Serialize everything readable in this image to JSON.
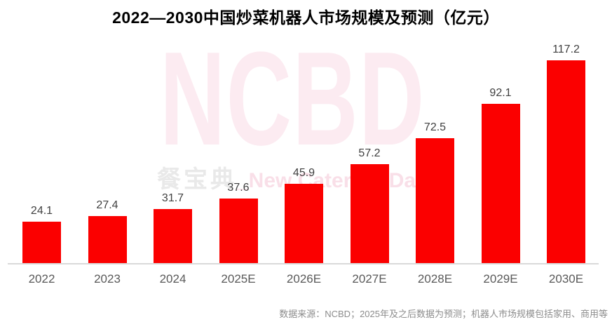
{
  "title": "2022—2030中国炒菜机器人市场规模及预测（亿元）",
  "watermark": {
    "logo": "NCBD",
    "subtext_cn": "餐宝典",
    "subtext_en": "_New Catering Data"
  },
  "source_note": "数据来源：NCBD；2025年及之后数据为预测；机器人市场规模包括家用、商用等",
  "colors": {
    "bar": "#fb0000",
    "title_text": "#000000",
    "value_label": "#3f3f3f",
    "axis_label": "#595959",
    "axis_line": "#d9d9d9",
    "source_text": "#8c8c8c",
    "watermark_pink": "#fcebf1",
    "watermark_cn_gray": "#e9e9e9",
    "watermark_en_pink": "#f9dfe8"
  },
  "chart_data": {
    "type": "bar",
    "title": "2022—2030中国炒菜机器人市场规模及预测（亿元）",
    "categories": [
      "2022",
      "2023",
      "2024",
      "2025E",
      "2026E",
      "2027E",
      "2028E",
      "2029E",
      "2030E"
    ],
    "values": [
      24.1,
      27.4,
      31.7,
      37.6,
      45.9,
      57.2,
      72.5,
      92.1,
      117.2
    ],
    "unit": "亿元",
    "xlabel": "",
    "ylabel": "",
    "ylim": [
      0,
      125
    ],
    "grid": false,
    "legend": "none",
    "data_labels": "one decimal, above each bar",
    "bar_color": "#fb0000"
  }
}
